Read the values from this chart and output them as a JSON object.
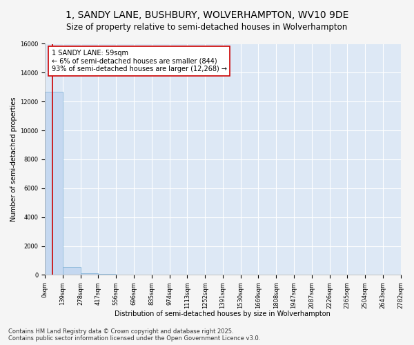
{
  "title": "1, SANDY LANE, BUSHBURY, WOLVERHAMPTON, WV10 9DE",
  "subtitle": "Size of property relative to semi-detached houses in Wolverhampton",
  "xlabel": "Distribution of semi-detached houses by size in Wolverhampton",
  "ylabel": "Number of semi-detached properties",
  "footnote": "Contains HM Land Registry data © Crown copyright and database right 2025.\nContains public sector information licensed under the Open Government Licence v3.0.",
  "annotation_text": "1 SANDY LANE: 59sqm\n← 6% of semi-detached houses are smaller (844)\n93% of semi-detached houses are larger (12,268) →",
  "property_size": 59,
  "bar_values": [
    12700,
    550,
    100,
    50,
    20,
    10,
    5,
    3,
    2,
    1,
    1,
    1,
    1,
    1,
    0,
    0,
    0,
    0,
    0,
    0
  ],
  "bin_edges": [
    0,
    139,
    278,
    417,
    556,
    696,
    835,
    974,
    1113,
    1252,
    1391,
    1530,
    1669,
    1808,
    1947,
    2087,
    2226,
    2365,
    2504,
    2643,
    2782
  ],
  "xtick_labels": [
    "0sqm",
    "139sqm",
    "278sqm",
    "417sqm",
    "556sqm",
    "696sqm",
    "835sqm",
    "974sqm",
    "1113sqm",
    "1252sqm",
    "1391sqm",
    "1530sqm",
    "1669sqm",
    "1808sqm",
    "1947sqm",
    "2087sqm",
    "2226sqm",
    "2365sqm",
    "2504sqm",
    "2643sqm",
    "2782sqm"
  ],
  "ylim": [
    0,
    16000
  ],
  "yticks": [
    0,
    2000,
    4000,
    6000,
    8000,
    10000,
    12000,
    14000,
    16000
  ],
  "bar_color": "#c5d8f0",
  "bar_edge_color": "#7aafd4",
  "vline_color": "#cc0000",
  "annotation_box_color": "#cc0000",
  "bg_color": "#dde8f5",
  "fig_bg_color": "#f5f5f5",
  "grid_color": "#ffffff",
  "title_fontsize": 10,
  "subtitle_fontsize": 8.5,
  "annotation_fontsize": 7,
  "ylabel_fontsize": 7,
  "xlabel_fontsize": 7,
  "footnote_fontsize": 6,
  "tick_fontsize": 6
}
